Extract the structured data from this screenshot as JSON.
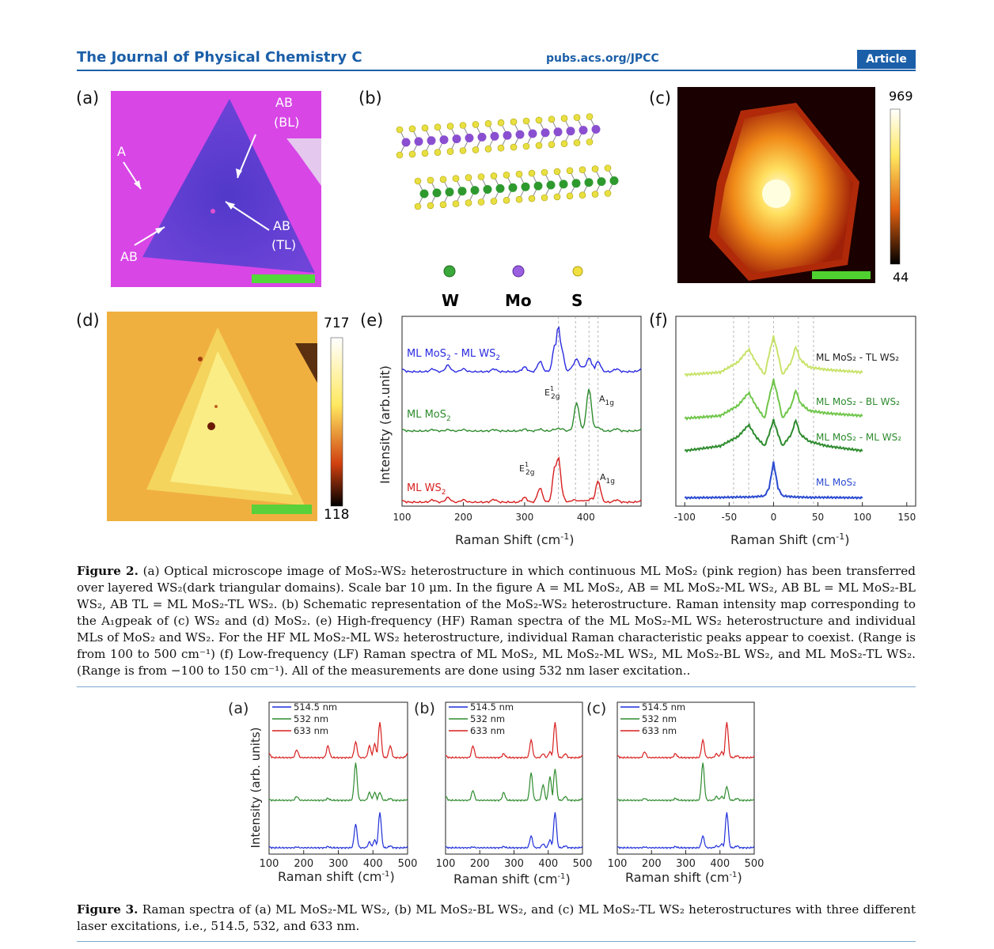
{
  "header": {
    "journal": "The Journal of Physical Chemistry C",
    "url": "pubs.acs.org/JPCC",
    "badge": "Article"
  },
  "figure2": {
    "panel_labels": [
      "(a)",
      "(b)",
      "(c)",
      "(d)",
      "(e)",
      "(f)"
    ],
    "a": {
      "labels": {
        "ab_bl_1": "AB",
        "ab_bl_2": "(BL)",
        "a": "A",
        "ab_tl_1": "AB",
        "ab_tl_2": "(TL)",
        "ab": "AB"
      },
      "colors": {
        "ml_mos2": "#e040e8",
        "ws2": "#5a3fd0"
      }
    },
    "b": {
      "legend": [
        "W",
        "Mo",
        "S"
      ],
      "colors": {
        "W": "#2e9a2e",
        "Mo": "#8a4fd0",
        "S": "#e8e040"
      }
    },
    "c": {
      "cbar_max": "969",
      "cbar_min": "44"
    },
    "d": {
      "cbar_max": "717",
      "cbar_min": "118"
    },
    "e": {
      "ylabel": "Intensity (arb.unit)",
      "xlabel": "Raman Shift (cm",
      "xlabel_sup": "-1",
      "xlabel_close": ")",
      "ticks": [
        "100",
        "200",
        "300",
        "400"
      ],
      "series_labels": {
        "top_1": "ML MoS",
        "top_2": " - ML WS",
        "mid": "ML MoS",
        "bot": "ML WS"
      },
      "peak_labels": {
        "e12g_mid": "E",
        "e12g_mid_sup": "1",
        "e12g_mid_sub": "2g",
        "a1g_mid": "A",
        "a1g_mid_sub": "1g",
        "e12g_bot": "E",
        "e12g_bot_sup": "1",
        "e12g_bot_sub": "2g",
        "a1g_bot": "A",
        "a1g_bot_sub": "1g"
      }
    },
    "f": {
      "xlabel": "Raman Shift (cm",
      "xlabel_sup": "-1",
      "xlabel_close": ")",
      "ticks": [
        "-100",
        "-50",
        "0",
        "50",
        "100",
        "150"
      ],
      "series_labels": {
        "tl": "ML MoS₂ - TL WS₂",
        "bl": "ML MoS₂ - BL WS₂",
        "ml": "ML MoS₂ - ML WS₂",
        "mos2": "ML MoS₂"
      }
    },
    "caption_lead": "Figure 2.",
    "caption": "(a) Optical microscope image of MoS₂-WS₂ heterostructure in which continuous ML MoS₂ (pink region) has been transferred over layered WS₂(dark triangular domains). Scale bar 10 μm. In the figure A = ML MoS₂, AB = ML MoS₂-ML WS₂, AB BL = ML MoS₂-BL WS₂, AB TL = ML MoS₂-TL WS₂. (b) Schematic representation of the MoS₂-WS₂ heterostructure. Raman intensity map corresponding to the A₁gpeak of (c) WS₂ and (d) MoS₂. (e) High-frequency (HF) Raman spectra of the ML MoS₂-ML WS₂ heterostructure and individual MLs of MoS₂ and WS₂. For the HF ML MoS₂-ML WS₂ heterostructure, individual Raman characteristic peaks appear to coexist. (Range is from 100 to 500 cm⁻¹) (f) Low-frequency (LF) Raman spectra of ML MoS₂, ML MoS₂-ML WS₂, ML MoS₂-BL WS₂, and ML MoS₂-TL WS₂. (Range is from −100 to 150 cm⁻¹). All of the measurements are done using 532 nm laser excitation.."
  },
  "figure3": {
    "panel_labels": [
      "(a)",
      "(b)",
      "(c)"
    ],
    "legend": [
      "514.5 nm",
      "532 nm",
      "633 nm"
    ],
    "colors": {
      "514.5 nm": "#1f2fd8",
      "532 nm": "#2e8b2e",
      "633 nm": "#d81f1f"
    },
    "ylabel": "Intensity (arb. units)",
    "xlabel": "Raman shift (cm",
    "xlabel_sup": "-1",
    "xlabel_close": ")",
    "ticks": [
      "100",
      "200",
      "300",
      "400",
      "500"
    ],
    "caption_lead": "Figure 3.",
    "caption": "Raman spectra of (a) ML MoS₂-ML WS₂, (b) ML MoS₂-BL WS₂, and (c) ML MoS₂-TL WS₂ heterostructures with three different laser excitations, i.e., 514.5, 532, and 633 nm."
  },
  "chart_data": [
    {
      "type": "line",
      "panel": "Figure 2(e)",
      "xlabel": "Raman Shift (cm-1)",
      "ylabel": "Intensity (arb.unit)",
      "xlim": [
        100,
        490
      ],
      "x": [
        100,
        150,
        175,
        200,
        250,
        300,
        325,
        350,
        355,
        360,
        380,
        385,
        395,
        405,
        410,
        420,
        450,
        490
      ],
      "series": [
        {
          "name": "ML MoS2 - ML WS2",
          "color": "#2a2ae0",
          "values": [
            0.05,
            0.06,
            0.14,
            0.06,
            0.06,
            0.1,
            0.22,
            0.6,
            0.95,
            0.5,
            0.15,
            0.28,
            0.12,
            0.3,
            0.15,
            0.22,
            0.06,
            0.05
          ]
        },
        {
          "name": "ML MoS2",
          "color": "#2e8b2e",
          "values": [
            0.03,
            0.03,
            0.03,
            0.03,
            0.03,
            0.04,
            0.04,
            0.04,
            0.05,
            0.05,
            0.06,
            0.6,
            0.08,
            0.9,
            0.2,
            0.08,
            0.05,
            0.03
          ]
        },
        {
          "name": "ML WS2",
          "color": "#d81f1f",
          "values": [
            0.03,
            0.05,
            0.1,
            0.05,
            0.06,
            0.1,
            0.3,
            0.8,
            0.95,
            0.2,
            0.05,
            0.04,
            0.04,
            0.05,
            0.08,
            0.45,
            0.05,
            0.03
          ]
        }
      ]
    },
    {
      "type": "line",
      "panel": "Figure 2(f)",
      "xlabel": "Raman Shift (cm-1)",
      "xlim": [
        -100,
        150
      ],
      "x": [
        -100,
        -60,
        -40,
        -28,
        -20,
        -10,
        -5,
        0,
        5,
        10,
        20,
        25,
        30,
        40,
        60,
        100
      ],
      "series": [
        {
          "name": "ML MoS2 - TL WS2",
          "color": "#c8e36a",
          "values": [
            0.2,
            0.25,
            0.45,
            0.7,
            0.45,
            0.2,
            0.6,
            0.95,
            0.6,
            0.2,
            0.45,
            0.75,
            0.5,
            0.35,
            0.3,
            0.25
          ]
        },
        {
          "name": "ML MoS2 - BL WS2",
          "color": "#6fc64a",
          "values": [
            0.2,
            0.25,
            0.45,
            0.7,
            0.45,
            0.2,
            0.6,
            0.95,
            0.6,
            0.2,
            0.45,
            0.75,
            0.5,
            0.35,
            0.3,
            0.25
          ]
        },
        {
          "name": "ML MoS2 - ML WS2",
          "color": "#2e8b2e",
          "values": [
            0.2,
            0.3,
            0.5,
            0.75,
            0.5,
            0.3,
            0.55,
            0.85,
            0.55,
            0.3,
            0.55,
            0.85,
            0.55,
            0.4,
            0.3,
            0.2
          ]
        },
        {
          "name": "ML MoS2",
          "color": "#2a4ad0",
          "values": [
            0.05,
            0.06,
            0.07,
            0.07,
            0.08,
            0.1,
            0.3,
            0.95,
            0.3,
            0.1,
            0.08,
            0.07,
            0.07,
            0.06,
            0.06,
            0.05
          ]
        }
      ]
    },
    {
      "type": "line",
      "panel": "Figure 3(a)",
      "xlabel": "Raman shift (cm-1)",
      "ylabel": "Intensity (arb. units)",
      "xlim": [
        100,
        500
      ],
      "x": [
        100,
        180,
        270,
        350,
        390,
        405,
        420,
        450,
        500
      ],
      "series": [
        {
          "name": "514.5 nm",
          "values": [
            0.02,
            0.02,
            0.03,
            0.6,
            0.15,
            0.2,
            0.9,
            0.05,
            0.02
          ]
        },
        {
          "name": "532 nm",
          "values": [
            0.02,
            0.1,
            0.05,
            0.95,
            0.2,
            0.2,
            0.2,
            0.05,
            0.02
          ]
        },
        {
          "name": "633 nm",
          "values": [
            0.1,
            0.2,
            0.3,
            0.4,
            0.3,
            0.35,
            0.9,
            0.3,
            0.1
          ]
        }
      ]
    },
    {
      "type": "line",
      "panel": "Figure 3(b)",
      "xlabel": "Raman shift (cm-1)",
      "xlim": [
        100,
        500
      ],
      "x": [
        100,
        180,
        270,
        350,
        385,
        405,
        420,
        450,
        500
      ],
      "series": [
        {
          "name": "514.5 nm",
          "values": [
            0.02,
            0.02,
            0.03,
            0.3,
            0.1,
            0.2,
            0.9,
            0.05,
            0.02
          ]
        },
        {
          "name": "532 nm",
          "values": [
            0.1,
            0.25,
            0.2,
            0.7,
            0.4,
            0.6,
            0.8,
            0.1,
            0.05
          ]
        },
        {
          "name": "633 nm",
          "values": [
            0.05,
            0.3,
            0.1,
            0.45,
            0.1,
            0.15,
            0.9,
            0.1,
            0.05
          ]
        }
      ]
    },
    {
      "type": "line",
      "panel": "Figure 3(c)",
      "xlabel": "Raman shift (cm-1)",
      "xlim": [
        100,
        500
      ],
      "x": [
        100,
        180,
        270,
        350,
        390,
        405,
        420,
        450,
        500
      ],
      "series": [
        {
          "name": "514.5 nm",
          "values": [
            0.02,
            0.02,
            0.03,
            0.3,
            0.05,
            0.1,
            0.9,
            0.05,
            0.02
          ]
        },
        {
          "name": "532 nm",
          "values": [
            0.02,
            0.05,
            0.05,
            0.95,
            0.1,
            0.1,
            0.35,
            0.05,
            0.02
          ]
        },
        {
          "name": "633 nm",
          "values": [
            0.05,
            0.15,
            0.1,
            0.45,
            0.1,
            0.15,
            0.9,
            0.05,
            0.02
          ]
        }
      ]
    }
  ]
}
